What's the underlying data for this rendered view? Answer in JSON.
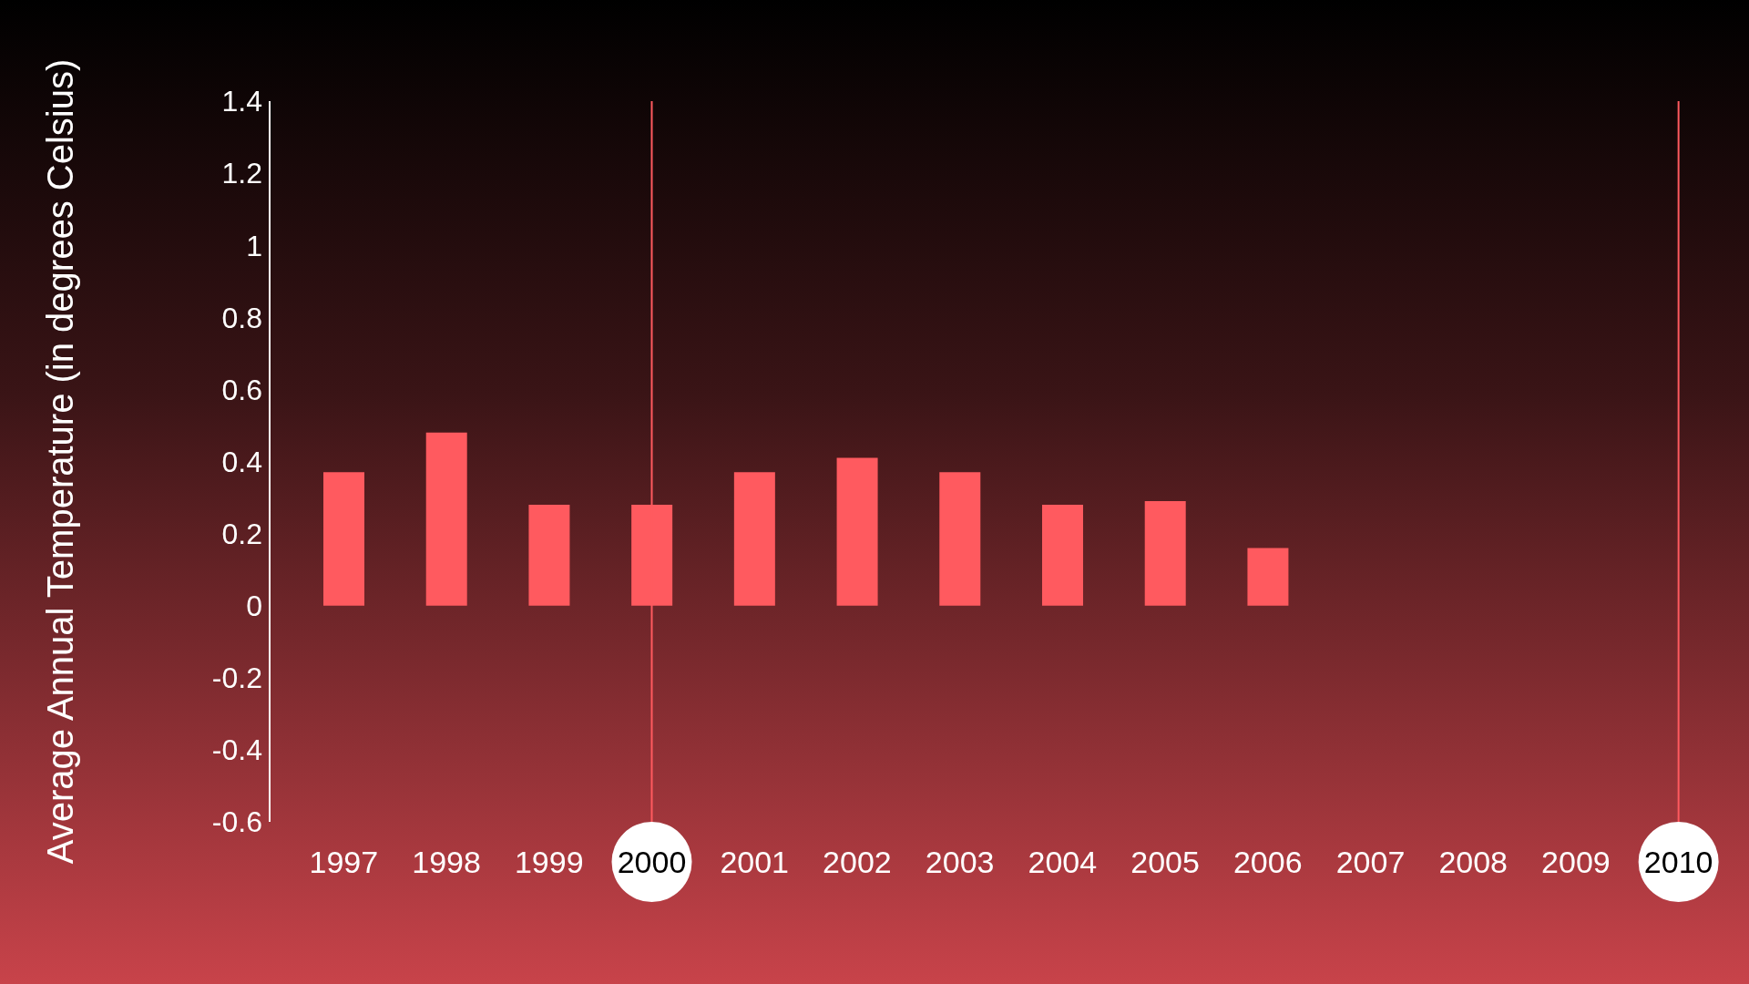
{
  "chart_data": {
    "type": "bar",
    "ylabel": "Average Annual Temperature (in degrees Celsius)",
    "categories": [
      "1997",
      "1998",
      "1999",
      "2000",
      "2001",
      "2002",
      "2003",
      "2004",
      "2005",
      "2006",
      "2007",
      "2008",
      "2009",
      "2010"
    ],
    "values": [
      0.37,
      0.48,
      0.28,
      0.28,
      0.37,
      0.41,
      0.37,
      0.28,
      0.29,
      0.16,
      null,
      null,
      null,
      null
    ],
    "color": "#ff5a5f",
    "ylim": [
      -0.6,
      1.4
    ],
    "yticks": [
      -0.6,
      -0.4,
      -0.2,
      0,
      0.2,
      0.4,
      0.6,
      0.8,
      1,
      1.2,
      1.4
    ],
    "grid": false,
    "legend": false,
    "ref_lines": [
      {
        "axis": "x",
        "value": "2000",
        "color": "#ff5a5f"
      },
      {
        "axis": "x",
        "value": "2010",
        "color": "#ff5a5f"
      }
    ]
  }
}
